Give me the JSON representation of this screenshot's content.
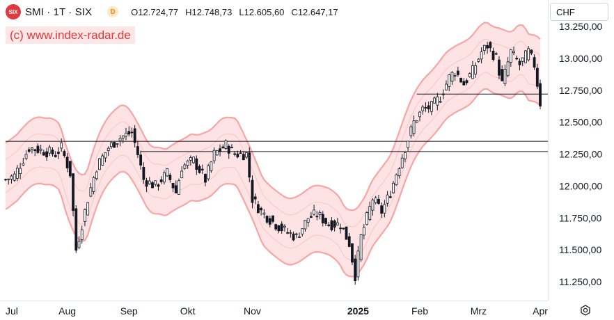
{
  "header": {
    "symbol_logo": "SIX",
    "symbol_title": "SMI · 1T · SIX",
    "delay_badge": "D",
    "ohlc": [
      {
        "key": "O",
        "value": "12.724,77"
      },
      {
        "key": "H",
        "value": "12.748,73"
      },
      {
        "key": "L",
        "value": "12.605,60"
      },
      {
        "key": "C",
        "value": "12.647,17"
      }
    ]
  },
  "watermark": "(c) www.index-radar.de",
  "currency": "CHF",
  "icons": {
    "settings": "settings-gear-icon"
  },
  "colors": {
    "band_fill": "#fde3e3",
    "band_line": "#f7a5a5",
    "inner_line": "#fbc4c4",
    "candle": "#131722",
    "grid": "#ffffff",
    "axis_text": "#131722"
  },
  "chart_data": {
    "type": "candlestick",
    "title": "SMI · 1T · SIX",
    "y_axis": {
      "min": 11100,
      "max": 13300,
      "ticks": [
        11250,
        11500,
        11750,
        12000,
        12250,
        12500,
        12750,
        13000,
        13250
      ],
      "tick_labels": [
        "11.250,00",
        "11.500,00",
        "11.750,00",
        "12.000,00",
        "12.250,00",
        "12.500,00",
        "12.750,00",
        "13.000,00",
        "13.250,00"
      ]
    },
    "x_axis": {
      "labels": [
        {
          "label": "Jul",
          "index": 0
        },
        {
          "label": "Aug",
          "index": 21
        },
        {
          "label": "Sep",
          "index": 42
        },
        {
          "label": "Okt",
          "index": 62
        },
        {
          "label": "Nov",
          "index": 84
        },
        {
          "label": "2025",
          "index": 120
        },
        {
          "label": "Feb",
          "index": 141
        },
        {
          "label": "Mrz",
          "index": 161
        },
        {
          "label": "Apr",
          "index": 182
        }
      ]
    },
    "horizontal_lines": [
      {
        "value": 12350,
        "from_index": 0
      },
      {
        "value": 12270,
        "from_index": 46
      },
      {
        "value": 12720,
        "from_index": 140
      }
    ],
    "keypoints": [
      [
        0,
        12050
      ],
      [
        3,
        12080
      ],
      [
        8,
        12300
      ],
      [
        12,
        12280
      ],
      [
        17,
        12250
      ],
      [
        19,
        12300
      ],
      [
        22,
        12100
      ],
      [
        24,
        11500
      ],
      [
        28,
        11900
      ],
      [
        31,
        12150
      ],
      [
        35,
        12300
      ],
      [
        39,
        12380
      ],
      [
        43,
        12420
      ],
      [
        45,
        12250
      ],
      [
        47,
        12050
      ],
      [
        51,
        12000
      ],
      [
        55,
        12100
      ],
      [
        58,
        11950
      ],
      [
        60,
        12150
      ],
      [
        64,
        12200
      ],
      [
        68,
        12050
      ],
      [
        71,
        12250
      ],
      [
        75,
        12320
      ],
      [
        78,
        12250
      ],
      [
        82,
        12250
      ],
      [
        84,
        11900
      ],
      [
        87,
        11800
      ],
      [
        92,
        11700
      ],
      [
        95,
        11650
      ],
      [
        99,
        11600
      ],
      [
        103,
        11750
      ],
      [
        106,
        11780
      ],
      [
        110,
        11700
      ],
      [
        114,
        11700
      ],
      [
        117,
        11550
      ],
      [
        119,
        11300
      ],
      [
        121,
        11600
      ],
      [
        125,
        11900
      ],
      [
        128,
        11800
      ],
      [
        131,
        11950
      ],
      [
        133,
        12100
      ],
      [
        136,
        12300
      ],
      [
        139,
        12500
      ],
      [
        142,
        12600
      ],
      [
        145,
        12620
      ],
      [
        148,
        12700
      ],
      [
        151,
        12850
      ],
      [
        153,
        12900
      ],
      [
        156,
        12800
      ],
      [
        159,
        12900
      ],
      [
        162,
        13050
      ],
      [
        164,
        13100
      ],
      [
        167,
        13000
      ],
      [
        169,
        12800
      ],
      [
        172,
        13050
      ],
      [
        175,
        12950
      ],
      [
        178,
        13050
      ],
      [
        180,
        12950
      ],
      [
        182,
        12650
      ]
    ],
    "candles_seed": 7,
    "band_offsets": {
      "upper_outer": 260,
      "upper_inner": 130,
      "lower_inner": -130,
      "lower_outer": -260
    }
  }
}
